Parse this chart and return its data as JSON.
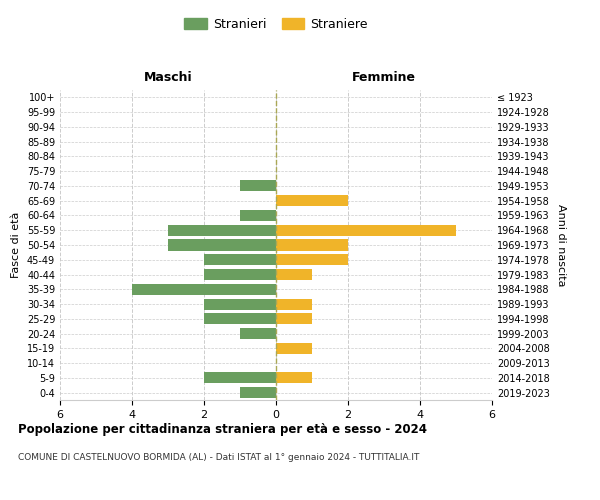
{
  "age_groups": [
    "100+",
    "95-99",
    "90-94",
    "85-89",
    "80-84",
    "75-79",
    "70-74",
    "65-69",
    "60-64",
    "55-59",
    "50-54",
    "45-49",
    "40-44",
    "35-39",
    "30-34",
    "25-29",
    "20-24",
    "15-19",
    "10-14",
    "5-9",
    "0-4"
  ],
  "birth_years": [
    "≤ 1923",
    "1924-1928",
    "1929-1933",
    "1934-1938",
    "1939-1943",
    "1944-1948",
    "1949-1953",
    "1954-1958",
    "1959-1963",
    "1964-1968",
    "1969-1973",
    "1974-1978",
    "1979-1983",
    "1984-1988",
    "1989-1993",
    "1994-1998",
    "1999-2003",
    "2004-2008",
    "2009-2013",
    "2014-2018",
    "2019-2023"
  ],
  "males": [
    0,
    0,
    0,
    0,
    0,
    0,
    1,
    0,
    1,
    3,
    3,
    2,
    2,
    4,
    2,
    2,
    1,
    0,
    0,
    2,
    1
  ],
  "females": [
    0,
    0,
    0,
    0,
    0,
    0,
    0,
    2,
    0,
    5,
    2,
    2,
    1,
    0,
    1,
    1,
    0,
    1,
    0,
    1,
    0
  ],
  "male_color": "#6a9e5f",
  "female_color": "#f0b429",
  "male_label": "Stranieri",
  "female_label": "Straniere",
  "title": "Popolazione per cittadinanza straniera per età e sesso - 2024",
  "subtitle": "COMUNE DI CASTELNUOVO BORMIDA (AL) - Dati ISTAT al 1° gennaio 2024 - TUTTITALIA.IT",
  "xlabel_left": "Maschi",
  "xlabel_right": "Femmine",
  "ylabel_left": "Fasce di età",
  "ylabel_right": "Anni di nascita",
  "xlim": 6,
  "background_color": "#ffffff",
  "grid_color": "#cccccc"
}
